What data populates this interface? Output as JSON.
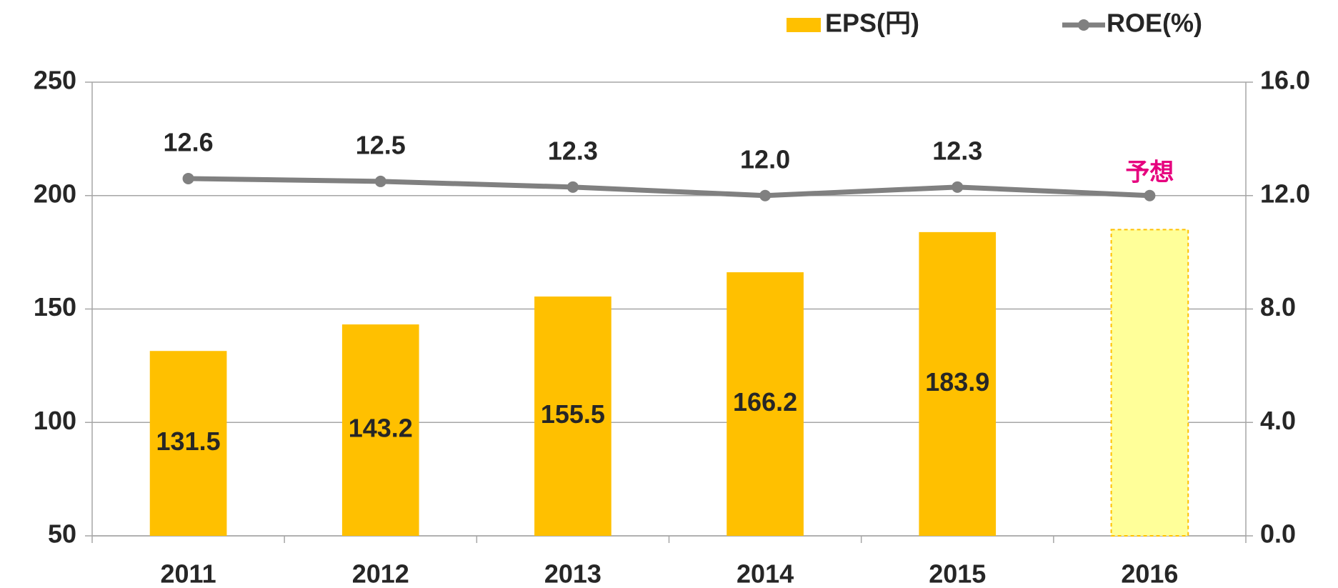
{
  "chart_data": {
    "type": "bar_line",
    "categories": [
      "2011",
      "2012",
      "2013",
      "2014",
      "2015",
      "2016"
    ],
    "series": [
      {
        "name": "EPS(円)",
        "type": "bar",
        "color": "#ffc000",
        "colors": [
          "#ffc000",
          "#ffc000",
          "#ffc000",
          "#ffc000",
          "#ffc000",
          "#ffff99"
        ],
        "edgecolors": [
          null,
          null,
          null,
          null,
          null,
          "#ffc000"
        ],
        "values": [
          131.5,
          143.2,
          155.5,
          166.2,
          183.9,
          185
        ],
        "value_labels": [
          "131.5",
          "143.2",
          "155.5",
          "166.2",
          "183.9",
          null
        ]
      },
      {
        "name": "ROE(%)",
        "type": "line",
        "color": "#808080",
        "axis": "y2",
        "values": [
          12.6,
          12.5,
          12.3,
          12.0,
          12.3,
          12.0
        ],
        "value_labels": [
          "12.6",
          "12.5",
          "12.3",
          "12.0",
          "12.3",
          null
        ]
      }
    ],
    "annotations": [
      {
        "text": "予想",
        "color": "#e6007e"
      }
    ],
    "ylim": [
      50,
      250
    ],
    "yticks": [
      50,
      100,
      150,
      200,
      250
    ],
    "y2lim": [
      0,
      16
    ],
    "y2ticks": [
      {
        "value": 0,
        "label": "0.0"
      },
      {
        "value": 4,
        "label": "4.0"
      },
      {
        "value": 8,
        "label": "8.0"
      },
      {
        "value": 12,
        "label": "12.0"
      },
      {
        "value": 16,
        "label": "16.0"
      }
    ],
    "grid": true,
    "legend": "top right"
  }
}
